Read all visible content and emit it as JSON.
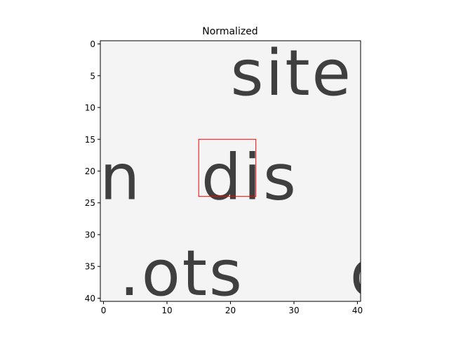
{
  "chart_data": {
    "type": "heatmap",
    "title": "Normalized",
    "xlabel": "",
    "ylabel": "",
    "grid": false,
    "legend": "none",
    "xlim": [
      -0.5,
      40.5
    ],
    "ylim": [
      40.5,
      -0.5
    ],
    "x_ticks": [
      0,
      10,
      20,
      30,
      40
    ],
    "y_ticks": [
      0,
      5,
      10,
      15,
      20,
      25,
      30,
      35,
      40
    ],
    "x_tick_labels": [
      "0",
      "10",
      "20",
      "30",
      "40"
    ],
    "y_tick_labels": [
      "0",
      "5",
      "10",
      "15",
      "20",
      "25",
      "30",
      "35",
      "40"
    ],
    "colormap": "gray",
    "text_rows": [
      {
        "text": "site",
        "x": 20,
        "y": 8,
        "size": 10
      },
      {
        "text": "n",
        "x": -0.6,
        "y": 24.4,
        "size": 10
      },
      {
        "text": "dis",
        "x": 15.4,
        "y": 24.4,
        "size": 10
      },
      {
        "text": ".ots",
        "x": 2.5,
        "y": 39.5,
        "size": 10
      },
      {
        "text": "o",
        "x": 38.8,
        "y": 39.5,
        "size": 10
      }
    ],
    "annotations": [
      {
        "type": "rectangle",
        "color": "#ff0000",
        "x0": 15,
        "y0": 15,
        "x1": 24,
        "y1": 24
      }
    ]
  }
}
